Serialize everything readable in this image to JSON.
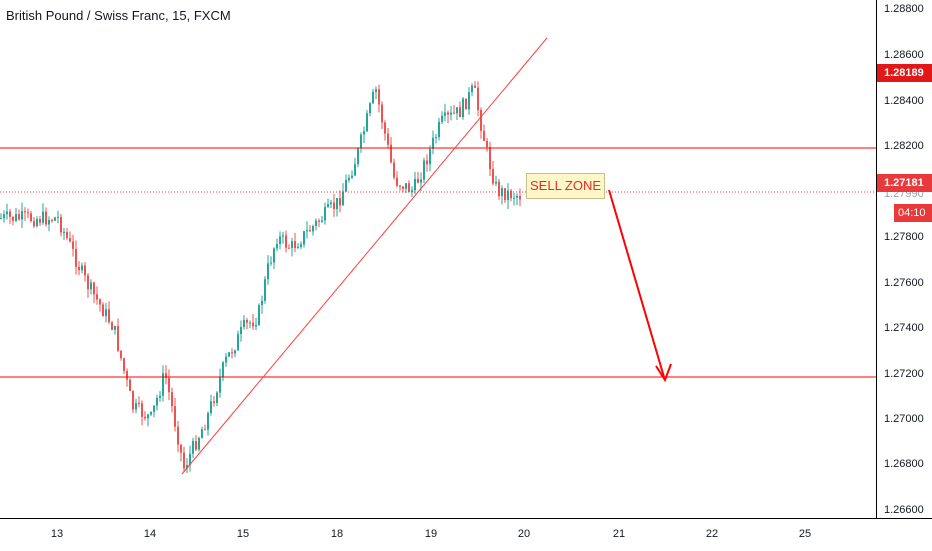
{
  "chart_title": "British Pound / Swiss Franc, 15, FXCM",
  "colors": {
    "up": "#26a69a",
    "down": "#ef5350",
    "line": "#ff0000",
    "badge": "#e01818"
  },
  "price_axis": {
    "ticks": [
      "1.28800",
      "1.28600",
      "1.28400",
      "1.28200",
      "1.27800",
      "1.27600",
      "1.27400",
      "1.27200",
      "1.27000",
      "1.26800",
      "1.26600"
    ],
    "badge_high": "1.28189",
    "badge_last": "1.27181",
    "badge_partial": "1.27990",
    "badge_timer": "04:10"
  },
  "time_axis": {
    "ticks": [
      "13",
      "14",
      "15",
      "18",
      "19",
      "20",
      "21",
      "22",
      "25"
    ]
  },
  "annotations": {
    "sell_zone": "SELL ZONE"
  },
  "chart_data": {
    "type": "candlestick",
    "title": "British Pound / Swiss Franc, 15, FXCM",
    "symbol": "GBPCHF",
    "interval": "15",
    "source": "FXCM",
    "ylim": [
      1.2655,
      1.2895
    ],
    "last_price": 1.27181,
    "horizontal_lines": [
      1.2819,
      1.2718
    ],
    "dotted_line": 1.2798,
    "trendline": {
      "from": {
        "date": "14",
        "price": 1.2675
      },
      "to": {
        "date": "20",
        "price": 1.2867
      }
    },
    "projection_arrow": {
      "from": {
        "date": "20.9",
        "price": 1.2797
      },
      "to": {
        "date": "21.5",
        "price": 1.2717
      }
    },
    "series": [
      {
        "x": 13.0,
        "price": 1.2788
      },
      {
        "x": 13.3,
        "price": 1.276
      },
      {
        "x": 13.6,
        "price": 1.274
      },
      {
        "x": 13.8,
        "price": 1.2705
      },
      {
        "x": 14.0,
        "price": 1.27
      },
      {
        "x": 14.15,
        "price": 1.272
      },
      {
        "x": 14.3,
        "price": 1.269
      },
      {
        "x": 14.35,
        "price": 1.2678
      },
      {
        "x": 14.6,
        "price": 1.27
      },
      {
        "x": 14.8,
        "price": 1.2725
      },
      {
        "x": 15.0,
        "price": 1.274
      },
      {
        "x": 15.3,
        "price": 1.2745
      },
      {
        "x": 15.5,
        "price": 1.2765
      },
      {
        "x": 15.7,
        "price": 1.278
      },
      {
        "x": 16.0,
        "price": 1.2775
      },
      {
        "x": 18.0,
        "price": 1.2795
      },
      {
        "x": 18.2,
        "price": 1.2815
      },
      {
        "x": 18.4,
        "price": 1.2845
      },
      {
        "x": 18.6,
        "price": 1.2805
      },
      {
        "x": 18.8,
        "price": 1.28
      },
      {
        "x": 19.0,
        "price": 1.282
      },
      {
        "x": 19.1,
        "price": 1.283
      },
      {
        "x": 19.3,
        "price": 1.2835
      },
      {
        "x": 19.45,
        "price": 1.2845
      },
      {
        "x": 19.6,
        "price": 1.2815
      },
      {
        "x": 19.7,
        "price": 1.28
      },
      {
        "x": 19.8,
        "price": 1.2799
      },
      {
        "x": 19.95,
        "price": 1.2798
      }
    ]
  }
}
